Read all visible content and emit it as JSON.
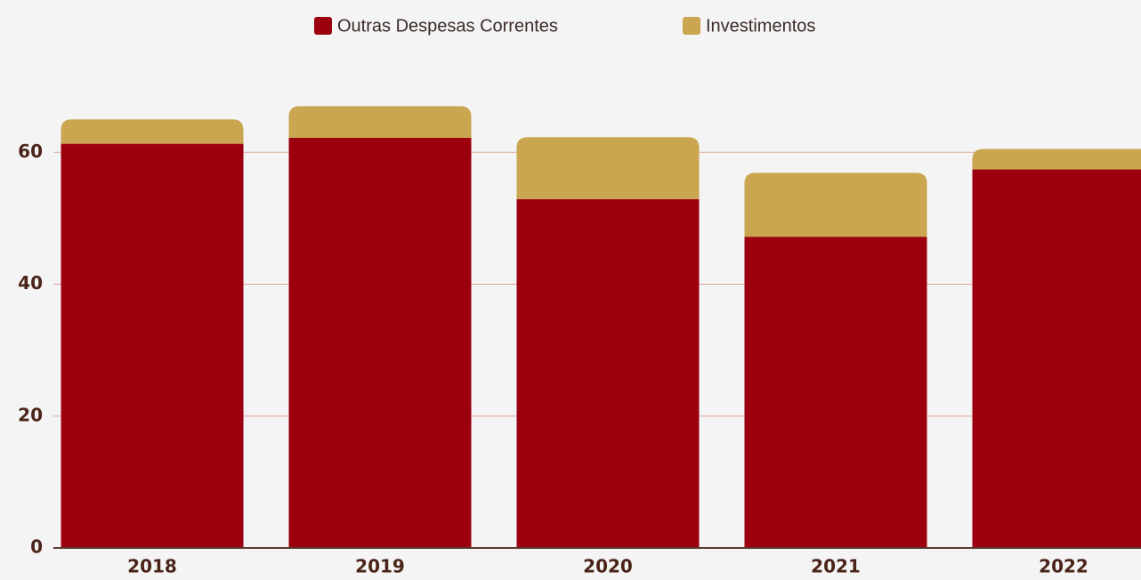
{
  "chart_data": {
    "type": "stacked_bar",
    "categories": [
      "2018",
      "2019",
      "2020",
      "2021",
      "2022"
    ],
    "series": [
      {
        "name": "Outras Despesas Correntes",
        "color": "#9c000f",
        "values": [
          61.3,
          62.2,
          52.9,
          47.2,
          57.4
        ]
      },
      {
        "name": "Investimentos",
        "color": "#c9a64f",
        "values": [
          3.7,
          4.8,
          9.4,
          9.7,
          3.1
        ]
      }
    ],
    "ylim": [
      0,
      80
    ],
    "yticks": [
      0,
      20,
      40,
      60
    ],
    "grid": true,
    "legend": "top"
  }
}
